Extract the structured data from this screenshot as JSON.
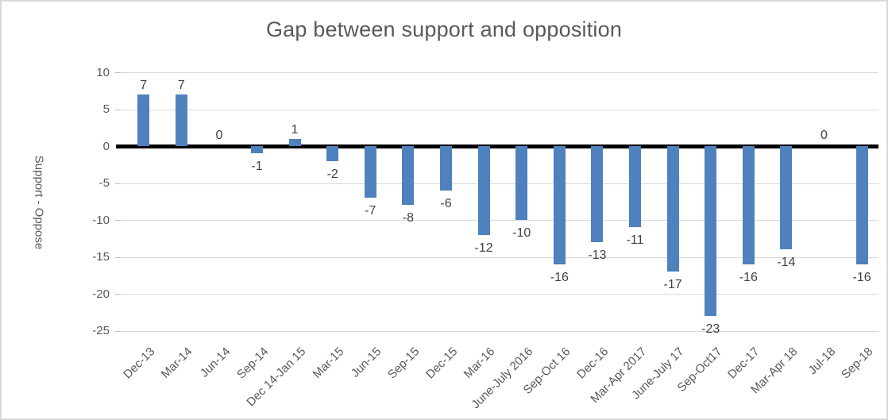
{
  "chart_data": {
    "type": "bar",
    "title": "Gap between support and opposition",
    "xlabel": "",
    "ylabel": "Support - Oppose",
    "categories": [
      "Dec-13",
      "Mar-14",
      "Jun-14",
      "Sep-14",
      "Dec 14-Jan 15",
      "Mar-15",
      "Jun-15",
      "Sep-15",
      "Dec-15",
      "Mar-16",
      "June-July 2016",
      "Sep-Oct 16",
      "Dec-16",
      "Mar-Apr 2017",
      "June-July 17",
      "Sep-Oct17",
      "Dec-17",
      "Mar-Apr 18",
      "Jul-18",
      "Sep-18"
    ],
    "values": [
      7,
      7,
      0,
      -1,
      1,
      -2,
      -7,
      -8,
      -6,
      -12,
      -10,
      -16,
      -13,
      -11,
      -17,
      -23,
      -16,
      -14,
      0,
      -16
    ],
    "data_labels": [
      7,
      7,
      0,
      -1,
      1,
      -2,
      -7,
      -8,
      -6,
      -12,
      -10,
      -16,
      -13,
      -11,
      -17,
      -23,
      -16,
      -14,
      0,
      -16
    ],
    "yticks": [
      10,
      5,
      0,
      -5,
      -10,
      -15,
      -20,
      -25
    ],
    "ylim": [
      -25,
      10
    ],
    "grid": true,
    "legend": "none",
    "x_label_rotation_deg": 45,
    "colors": {
      "bar": "#4F81BD",
      "gridline": "#D9D9D9",
      "zero_axis_line": "#000000",
      "title_text": "#595959",
      "axis_text": "#595959",
      "data_label_text": "#404040",
      "frame_border": "#D9D9D9"
    }
  }
}
